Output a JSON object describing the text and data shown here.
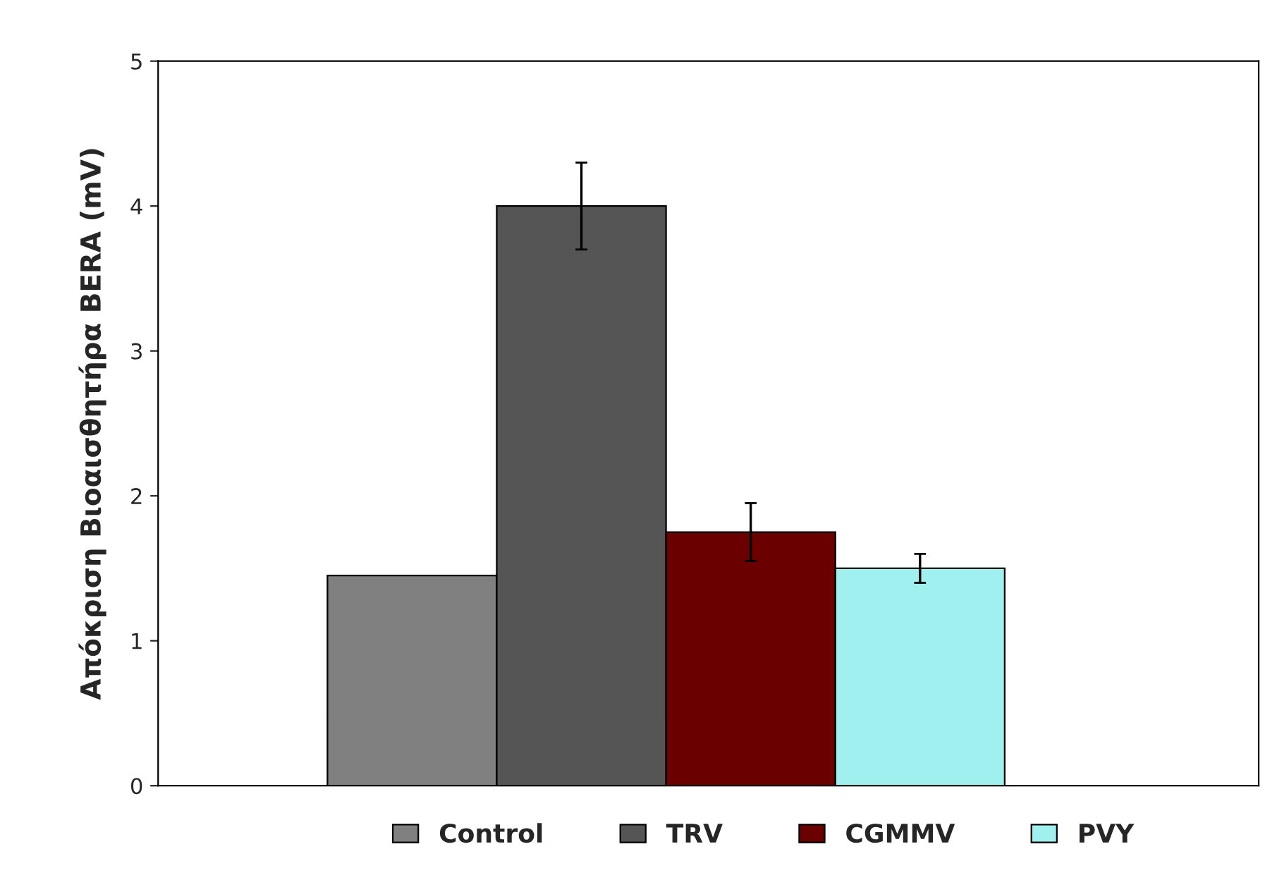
{
  "chart_data": {
    "type": "bar",
    "ylabel": "Απόκριση Βιοαισθητήρα BERA (mV)",
    "categories": [
      null
    ],
    "series": [
      {
        "name": "Control",
        "color": "#808080",
        "values": [
          1.45
        ],
        "errors": [
          null
        ]
      },
      {
        "name": "TRV",
        "color": "#555555",
        "values": [
          4.0
        ],
        "errors": [
          0.3
        ]
      },
      {
        "name": "CGMMV",
        "color": "#6b0000",
        "values": [
          1.75
        ],
        "errors": [
          0.2
        ]
      },
      {
        "name": "PVY",
        "color": "#a0f0f0",
        "values": [
          1.5
        ],
        "errors": [
          0.1
        ]
      }
    ],
    "ylim": [
      0,
      5
    ],
    "yticks": [
      0,
      1,
      2,
      3,
      4,
      5
    ],
    "grid": false,
    "legend": "bottom"
  }
}
